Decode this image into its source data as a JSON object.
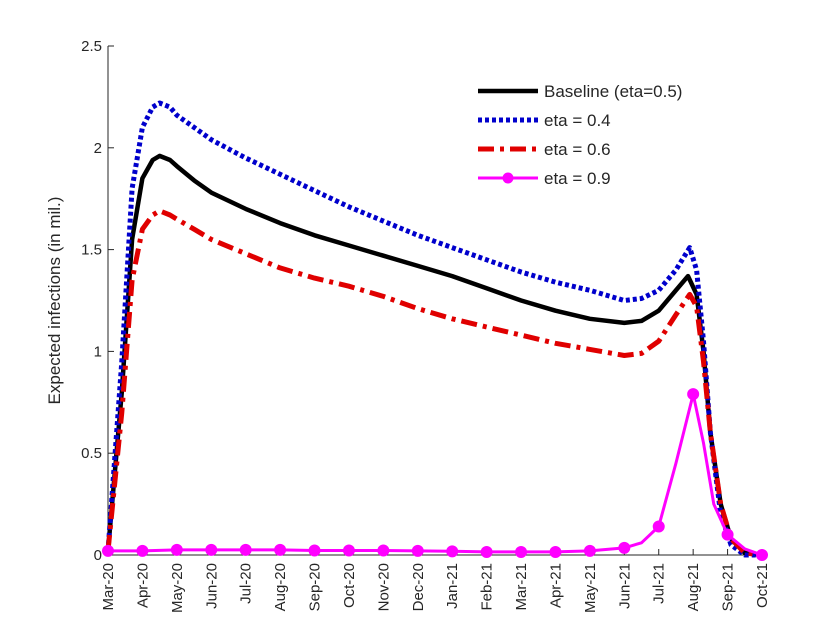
{
  "chart_data": {
    "type": "line",
    "title": "",
    "xlabel": "",
    "ylabel": "Expected infections (in mil.)",
    "ylim": [
      0,
      2.5
    ],
    "yticks": [
      0,
      0.5,
      1,
      1.5,
      2,
      2.5
    ],
    "ytick_labels": [
      "0",
      "0.5",
      "1",
      "1.5",
      "2",
      "2.5"
    ],
    "xlim": [
      0,
      19
    ],
    "x_ticks": [
      {
        "x": 0,
        "label": "Mar-20"
      },
      {
        "x": 1,
        "label": "Apr-20"
      },
      {
        "x": 2,
        "label": "May-20"
      },
      {
        "x": 3,
        "label": "Jun-20"
      },
      {
        "x": 4,
        "label": "Jul-20"
      },
      {
        "x": 5,
        "label": "Aug-20"
      },
      {
        "x": 6,
        "label": "Sep-20"
      },
      {
        "x": 7,
        "label": "Oct-20"
      },
      {
        "x": 8,
        "label": "Nov-20"
      },
      {
        "x": 9,
        "label": "Dec-20"
      },
      {
        "x": 10,
        "label": "Jan-21"
      },
      {
        "x": 11,
        "label": "Feb-21"
      },
      {
        "x": 12,
        "label": "Mar-21"
      },
      {
        "x": 13,
        "label": "Apr-21"
      },
      {
        "x": 14,
        "label": "May-21"
      },
      {
        "x": 15,
        "label": "Jun-21"
      },
      {
        "x": 16,
        "label": "Jul-21"
      },
      {
        "x": 17,
        "label": "Aug-21"
      },
      {
        "x": 18,
        "label": "Sep-21"
      },
      {
        "x": 19,
        "label": "Oct-21"
      }
    ],
    "legend_location": "top-right",
    "series": [
      {
        "name": "Baseline (eta=0.5)",
        "color": "#000000",
        "style": "solid",
        "marker": "none",
        "points": [
          [
            0,
            0.02
          ],
          [
            0.4,
            0.8
          ],
          [
            0.7,
            1.55
          ],
          [
            1,
            1.85
          ],
          [
            1.3,
            1.94
          ],
          [
            1.5,
            1.96
          ],
          [
            1.8,
            1.94
          ],
          [
            2,
            1.91
          ],
          [
            2.5,
            1.84
          ],
          [
            3,
            1.78
          ],
          [
            4,
            1.7
          ],
          [
            5,
            1.63
          ],
          [
            6,
            1.57
          ],
          [
            7,
            1.52
          ],
          [
            8,
            1.47
          ],
          [
            9,
            1.42
          ],
          [
            10,
            1.37
          ],
          [
            11,
            1.31
          ],
          [
            12,
            1.25
          ],
          [
            13,
            1.2
          ],
          [
            14,
            1.16
          ],
          [
            15,
            1.14
          ],
          [
            15.5,
            1.15
          ],
          [
            16,
            1.2
          ],
          [
            16.5,
            1.3
          ],
          [
            16.85,
            1.37
          ],
          [
            17.1,
            1.28
          ],
          [
            17.3,
            1.0
          ],
          [
            17.5,
            0.6
          ],
          [
            17.8,
            0.25
          ],
          [
            18.1,
            0.08
          ],
          [
            18.5,
            0.01
          ],
          [
            19,
            0.0
          ]
        ]
      },
      {
        "name": "eta = 0.4",
        "color": "#0000cc",
        "style": "dotted",
        "marker": "none",
        "points": [
          [
            0,
            0.02
          ],
          [
            0.4,
            0.95
          ],
          [
            0.7,
            1.8
          ],
          [
            1,
            2.1
          ],
          [
            1.3,
            2.2
          ],
          [
            1.5,
            2.22
          ],
          [
            1.8,
            2.2
          ],
          [
            2,
            2.16
          ],
          [
            2.5,
            2.1
          ],
          [
            3,
            2.04
          ],
          [
            4,
            1.95
          ],
          [
            5,
            1.87
          ],
          [
            6,
            1.79
          ],
          [
            7,
            1.71
          ],
          [
            8,
            1.64
          ],
          [
            9,
            1.57
          ],
          [
            10,
            1.51
          ],
          [
            11,
            1.45
          ],
          [
            12,
            1.39
          ],
          [
            13,
            1.34
          ],
          [
            14,
            1.3
          ],
          [
            15,
            1.25
          ],
          [
            15.5,
            1.26
          ],
          [
            16,
            1.3
          ],
          [
            16.5,
            1.4
          ],
          [
            16.9,
            1.51
          ],
          [
            17.1,
            1.4
          ],
          [
            17.3,
            1.05
          ],
          [
            17.5,
            0.6
          ],
          [
            17.8,
            0.2
          ],
          [
            18.1,
            0.05
          ],
          [
            18.5,
            0.0
          ],
          [
            19,
            0.0
          ]
        ]
      },
      {
        "name": "eta = 0.6",
        "color": "#e00000",
        "style": "dashdot",
        "marker": "none",
        "points": [
          [
            0,
            0.02
          ],
          [
            0.4,
            0.7
          ],
          [
            0.7,
            1.35
          ],
          [
            1,
            1.6
          ],
          [
            1.3,
            1.67
          ],
          [
            1.5,
            1.69
          ],
          [
            1.8,
            1.67
          ],
          [
            2,
            1.65
          ],
          [
            2.5,
            1.6
          ],
          [
            3,
            1.55
          ],
          [
            4,
            1.48
          ],
          [
            5,
            1.41
          ],
          [
            6,
            1.36
          ],
          [
            7,
            1.32
          ],
          [
            8,
            1.27
          ],
          [
            9,
            1.21
          ],
          [
            10,
            1.16
          ],
          [
            11,
            1.12
          ],
          [
            12,
            1.08
          ],
          [
            13,
            1.04
          ],
          [
            14,
            1.01
          ],
          [
            15,
            0.98
          ],
          [
            15.5,
            0.99
          ],
          [
            16,
            1.05
          ],
          [
            16.5,
            1.18
          ],
          [
            16.9,
            1.28
          ],
          [
            17.1,
            1.22
          ],
          [
            17.3,
            0.95
          ],
          [
            17.5,
            0.6
          ],
          [
            17.8,
            0.25
          ],
          [
            18.1,
            0.08
          ],
          [
            18.5,
            0.01
          ],
          [
            19,
            0.0
          ]
        ]
      },
      {
        "name": "eta = 0.9",
        "color": "#ff00ff",
        "style": "solid",
        "marker": "circle",
        "points": [
          [
            0,
            0.02
          ],
          [
            1,
            0.02
          ],
          [
            2,
            0.025
          ],
          [
            3,
            0.025
          ],
          [
            4,
            0.025
          ],
          [
            5,
            0.025
          ],
          [
            6,
            0.022
          ],
          [
            7,
            0.022
          ],
          [
            8,
            0.022
          ],
          [
            9,
            0.02
          ],
          [
            10,
            0.018
          ],
          [
            11,
            0.015
          ],
          [
            12,
            0.015
          ],
          [
            13,
            0.015
          ],
          [
            14,
            0.02
          ],
          [
            15,
            0.035
          ],
          [
            15.5,
            0.06
          ],
          [
            16,
            0.14
          ],
          [
            16.5,
            0.45
          ],
          [
            17,
            0.79
          ],
          [
            17.3,
            0.55
          ],
          [
            17.6,
            0.25
          ],
          [
            18,
            0.1
          ],
          [
            18.5,
            0.03
          ],
          [
            19,
            0.0
          ]
        ],
        "marker_points": [
          [
            0,
            0.02
          ],
          [
            1,
            0.02
          ],
          [
            2,
            0.025
          ],
          [
            3,
            0.025
          ],
          [
            4,
            0.025
          ],
          [
            5,
            0.025
          ],
          [
            6,
            0.022
          ],
          [
            7,
            0.022
          ],
          [
            8,
            0.022
          ],
          [
            9,
            0.02
          ],
          [
            10,
            0.018
          ],
          [
            11,
            0.015
          ],
          [
            12,
            0.015
          ],
          [
            13,
            0.015
          ],
          [
            14,
            0.02
          ],
          [
            15,
            0.035
          ],
          [
            16,
            0.14
          ],
          [
            17,
            0.79
          ],
          [
            18,
            0.1
          ],
          [
            19,
            0.0
          ]
        ]
      }
    ]
  }
}
